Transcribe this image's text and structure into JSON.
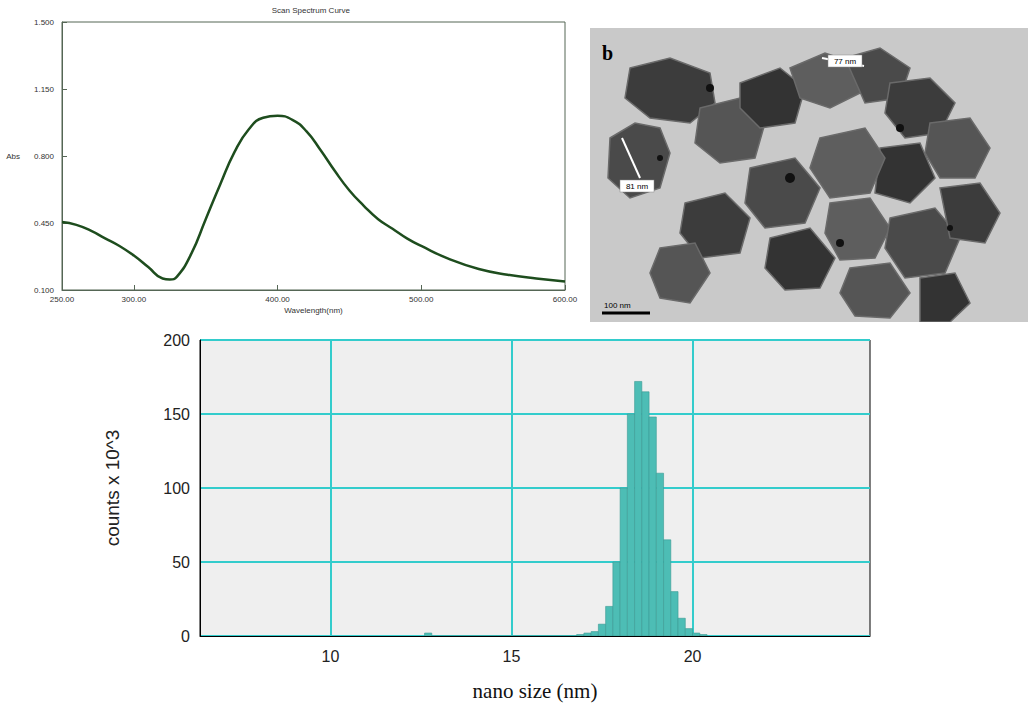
{
  "chart_data": [
    {
      "type": "line",
      "title": "Scan Spectrum Curve",
      "x_label": "Wavelength(nm)",
      "y_label": "Abs",
      "x": [
        250,
        260,
        270,
        280,
        290,
        300,
        310,
        320,
        325,
        330,
        340,
        350,
        360,
        370,
        380,
        390,
        400,
        410,
        420,
        430,
        440,
        450,
        460,
        470,
        480,
        490,
        500,
        520,
        540,
        560,
        580,
        600
      ],
      "values": [
        0.455,
        0.44,
        0.41,
        0.37,
        0.33,
        0.28,
        0.22,
        0.16,
        0.155,
        0.17,
        0.29,
        0.47,
        0.65,
        0.82,
        0.94,
        1.0,
        1.01,
        0.99,
        0.93,
        0.83,
        0.72,
        0.62,
        0.54,
        0.47,
        0.42,
        0.37,
        0.33,
        0.26,
        0.21,
        0.18,
        0.16,
        0.145
      ],
      "color": "#1e4d1e",
      "xlim": [
        250,
        600
      ],
      "xticks": [
        {
          "value": 250,
          "label": "250.00"
        },
        {
          "value": 300,
          "label": "300.00"
        },
        {
          "value": 400,
          "label": "400.00"
        },
        {
          "value": 500,
          "label": "500.00"
        },
        {
          "value": 600,
          "label": "600.00"
        }
      ],
      "ylim": [
        0.1,
        1.5
      ],
      "yticks": [
        {
          "value": 0.1,
          "label": "0.100"
        },
        {
          "value": 0.45,
          "label": "0.450"
        },
        {
          "value": 0.8,
          "label": "0.800"
        },
        {
          "value": 1.15,
          "label": "1.150"
        },
        {
          "value": 1.5,
          "label": "1.500"
        }
      ],
      "grid": false
    },
    {
      "type": "histogram",
      "x_label": "nano size (nm)",
      "y_label": "counts x 10^3",
      "bins": [
        12.6,
        12.8,
        13.0,
        13.2,
        13.4,
        13.6,
        13.8,
        14.0,
        14.2,
        14.4,
        14.6,
        14.8,
        15.0,
        15.2,
        15.4,
        15.6,
        15.8,
        16.0,
        16.2,
        16.4,
        16.6,
        16.8,
        17.0,
        17.2,
        17.4,
        17.6,
        17.8,
        18.0,
        18.2,
        18.4,
        18.6,
        18.8,
        19.0,
        19.2,
        19.4,
        19.6,
        19.8,
        20.0,
        20.2,
        20.4
      ],
      "counts": [
        2,
        0,
        0,
        0,
        0,
        0,
        0,
        0,
        0,
        0,
        0,
        0,
        0,
        0,
        0,
        0,
        0,
        0,
        0,
        0,
        0,
        1,
        2,
        3,
        8,
        20,
        50,
        100,
        150,
        172,
        165,
        148,
        110,
        65,
        30,
        12,
        5,
        2,
        1
      ],
      "color": "#4dbdb5",
      "xlim": [
        6.4,
        24.9
      ],
      "xticks": [
        10,
        15,
        20
      ],
      "ylim": [
        0,
        200
      ],
      "yticks": [
        0,
        50,
        100,
        150,
        200
      ],
      "grid": true
    }
  ],
  "image_panel": {
    "label": "b",
    "annotations": [
      "77 nm",
      "81 nm"
    ],
    "scale_bar": "100 nm"
  }
}
